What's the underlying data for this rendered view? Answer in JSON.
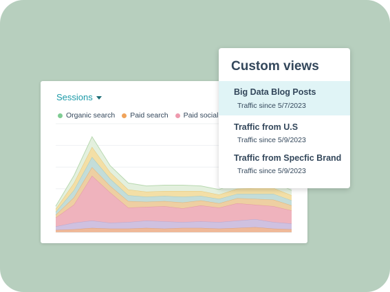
{
  "chart": {
    "metric_label": "Sessions",
    "legend": [
      {
        "label": "Organic search",
        "color": "#7fcc93"
      },
      {
        "label": "Paid search",
        "color": "#f0a35a"
      },
      {
        "label": "Paid social",
        "color": "#ee9aae"
      }
    ]
  },
  "chart_data": {
    "type": "area",
    "x": [
      0,
      1,
      2,
      3,
      4,
      5,
      6,
      7,
      8,
      9,
      10,
      11,
      12,
      13
    ],
    "series": [
      {
        "fill": "#efb999",
        "stroke": "#de9e7c",
        "values": [
          3,
          4,
          6,
          5,
          5,
          6,
          5,
          6,
          6,
          5,
          6,
          7,
          5,
          4
        ]
      },
      {
        "fill": "#cfc1e0",
        "stroke": "#b8a7cf",
        "values": [
          5,
          9,
          10,
          8,
          9,
          10,
          10,
          8,
          9,
          9,
          10,
          11,
          9,
          8
        ]
      },
      {
        "fill": "#efb3bd",
        "stroke": "#e397a4",
        "values": [
          12,
          25,
          62,
          42,
          20,
          19,
          21,
          19,
          22,
          20,
          24,
          20,
          22,
          18
        ]
      },
      {
        "fill": "#eecfa2",
        "stroke": "#dfb47a",
        "values": [
          4,
          10,
          12,
          9,
          9,
          7,
          7,
          8,
          7,
          6,
          7,
          8,
          9,
          7
        ]
      },
      {
        "fill": "#c3ddd9",
        "stroke": "#a2c9c3",
        "values": [
          4,
          10,
          14,
          10,
          8,
          7,
          7,
          8,
          6,
          6,
          6,
          7,
          8,
          7
        ]
      },
      {
        "fill": "#f3dfa6",
        "stroke": "#e4c77a",
        "values": [
          4,
          10,
          14,
          9,
          8,
          7,
          7,
          8,
          7,
          6,
          7,
          8,
          8,
          7
        ]
      },
      {
        "fill": "#e3f0de",
        "stroke": "#b8d8b0",
        "values": [
          4,
          10,
          14,
          9,
          9,
          8,
          8,
          8,
          7,
          7,
          8,
          9,
          8,
          7
        ]
      }
    ],
    "ylim": [
      0,
      150
    ]
  },
  "custom_views": {
    "title": "Custom views",
    "items": [
      {
        "name": "Big Data Blog Posts",
        "subtitle": "Traffic since 5/7/2023"
      },
      {
        "name": "Traffic from U.S",
        "subtitle": "Traffic since 5/9/2023"
      },
      {
        "name": "Traffic from Specfic Brand",
        "subtitle": "Traffic since 5/9/2023"
      }
    ]
  }
}
